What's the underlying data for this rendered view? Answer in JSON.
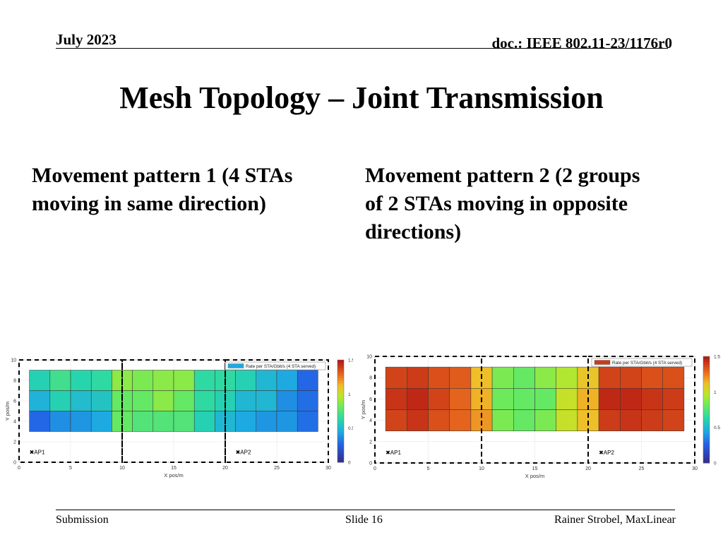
{
  "header": {
    "date": "July 2023",
    "doc_id": "doc.: IEEE 802.11-23/1176r0"
  },
  "title": "Mesh Topology – Joint Transmission",
  "columns": [
    {
      "heading": "Movement pattern 1 (4 STAs\n   moving in same direction)"
    },
    {
      "heading": "Movement pattern 2 (2 groups\n   of 2 STAs moving in opposite\n   directions)"
    }
  ],
  "chart_data": [
    {
      "type": "heatmap",
      "title": "",
      "xlabel": "X pos/m",
      "ylabel": "Y pos/m",
      "xlim": [
        0,
        30
      ],
      "ylim": [
        0,
        10
      ],
      "xticks": [
        "0",
        "5",
        "10",
        "15",
        "20",
        "25",
        "30"
      ],
      "yticks": [
        "0",
        "2",
        "4",
        "6",
        "8",
        "10"
      ],
      "legend": "Rate per STA/Gbit/s (4 STA served)",
      "legend_position": "top-right",
      "colorbar_ticks": [
        "0",
        "0.5",
        "1",
        "1.5"
      ],
      "clim": [
        0,
        1.5
      ],
      "grid_x": [
        1,
        3,
        5,
        7,
        9,
        11,
        13,
        15,
        17,
        19,
        21,
        23,
        25,
        27,
        29
      ],
      "grid_y": [
        3,
        5,
        7,
        9
      ],
      "values": [
        [
          0.28,
          0.38,
          0.4,
          0.45,
          0.8,
          0.75,
          0.75,
          0.75,
          0.6,
          0.5,
          0.45,
          0.4,
          0.4,
          0.3
        ],
        [
          0.48,
          0.6,
          0.52,
          0.55,
          0.8,
          0.8,
          0.88,
          0.8,
          0.65,
          0.6,
          0.5,
          0.5,
          0.38,
          0.3
        ],
        [
          0.6,
          0.7,
          0.62,
          0.65,
          0.88,
          0.85,
          0.88,
          0.88,
          0.65,
          0.65,
          0.6,
          0.5,
          0.45,
          0.28
        ]
      ],
      "access_points": [
        {
          "label": "AP1",
          "x": 1,
          "y": 1
        },
        {
          "label": "AP2",
          "x": 21,
          "y": 1
        }
      ],
      "regions": [
        {
          "x0": 0,
          "x1": 10,
          "y0": 0,
          "y1": 10
        },
        {
          "x0": 10,
          "x1": 20,
          "y0": 0,
          "y1": 10
        },
        {
          "x0": 20,
          "x1": 30,
          "y0": 0,
          "y1": 10
        }
      ]
    },
    {
      "type": "heatmap",
      "title": "",
      "xlabel": "X pos/m",
      "ylabel": "Y pos/m",
      "xlim": [
        0,
        30
      ],
      "ylim": [
        0,
        10
      ],
      "xticks": [
        "0",
        "5",
        "10",
        "15",
        "20",
        "25",
        "30"
      ],
      "yticks": [
        "0",
        "2",
        "4",
        "6",
        "8",
        "10"
      ],
      "legend": "Rate per STA/Gbit/s (4 STA served)",
      "legend_position": "top-right",
      "colorbar_ticks": [
        "0",
        "0.5",
        "1",
        "1.5"
      ],
      "clim": [
        0,
        1.5
      ],
      "grid_x": [
        1,
        3,
        5,
        7,
        9,
        11,
        13,
        15,
        17,
        19,
        21,
        23,
        25,
        27,
        29
      ],
      "grid_y": [
        3,
        5,
        7,
        9
      ],
      "values": [
        [
          1.38,
          1.42,
          1.35,
          1.3,
          1.2,
          0.85,
          0.8,
          0.85,
          1.0,
          1.12,
          1.4,
          1.42,
          1.4,
          1.38
        ],
        [
          1.42,
          1.45,
          1.38,
          1.3,
          1.15,
          0.82,
          0.8,
          0.8,
          1.0,
          1.15,
          1.45,
          1.45,
          1.42,
          1.4
        ],
        [
          1.38,
          1.4,
          1.35,
          1.32,
          1.12,
          0.85,
          0.8,
          0.88,
          0.95,
          1.1,
          1.38,
          1.38,
          1.35,
          1.35
        ]
      ],
      "access_points": [
        {
          "label": "AP1",
          "x": 1,
          "y": 1
        },
        {
          "label": "AP2",
          "x": 21,
          "y": 1
        }
      ],
      "regions": [
        {
          "x0": 0,
          "x1": 10,
          "y0": 0,
          "y1": 10
        },
        {
          "x0": 10,
          "x1": 20,
          "y0": 0,
          "y1": 10
        },
        {
          "x0": 20,
          "x1": 30,
          "y0": 0,
          "y1": 10
        }
      ]
    }
  ],
  "footer": {
    "left": "Submission",
    "center": "Slide 16",
    "right": "Rainer Strobel, MaxLinear"
  }
}
